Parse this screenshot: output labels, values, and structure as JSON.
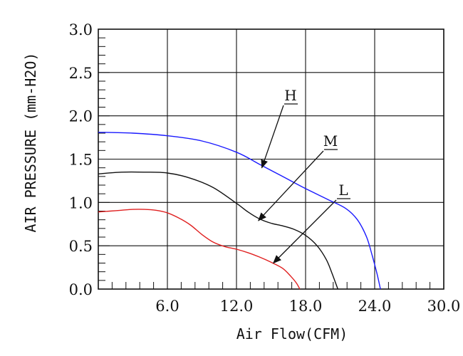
{
  "chart_data": {
    "type": "line",
    "xlabel": "Air Flow(CFM)",
    "ylabel": "AIR PRESSURE (mm-H2O)",
    "xlim": [
      0,
      30
    ],
    "ylim": [
      0,
      3.0
    ],
    "x_ticks": [
      {
        "value": 6,
        "label": "6.0"
      },
      {
        "value": 12,
        "label": "12.0"
      },
      {
        "value": 18,
        "label": "18.0"
      },
      {
        "value": 24,
        "label": "24.0"
      },
      {
        "value": 30,
        "label": "30.0"
      }
    ],
    "y_ticks": [
      {
        "value": 0,
        "label": "0.0"
      },
      {
        "value": 0.5,
        "label": "0.5"
      },
      {
        "value": 1.0,
        "label": "1.0"
      },
      {
        "value": 1.5,
        "label": "1.5"
      },
      {
        "value": 2.0,
        "label": "2.0"
      },
      {
        "value": 2.5,
        "label": "2.5"
      },
      {
        "value": 3.0,
        "label": "3.0"
      }
    ],
    "grid": true,
    "series": [
      {
        "name": "H",
        "color": "#1a1aff",
        "x": [
          0,
          3,
          6,
          9,
          12,
          14,
          16,
          18,
          20,
          21.5,
          22.5,
          23.3,
          23.8,
          24.2,
          24.5
        ],
        "y": [
          1.81,
          1.8,
          1.77,
          1.71,
          1.58,
          1.44,
          1.3,
          1.16,
          1.03,
          0.93,
          0.8,
          0.6,
          0.38,
          0.18,
          0.0
        ]
      },
      {
        "name": "M",
        "color": "#111111",
        "x": [
          0,
          2,
          4,
          6,
          8,
          10,
          12,
          13,
          14,
          15,
          16,
          17,
          18,
          19,
          19.8,
          20.3,
          20.8
        ],
        "y": [
          1.33,
          1.35,
          1.35,
          1.34,
          1.28,
          1.17,
          0.99,
          0.89,
          0.81,
          0.76,
          0.73,
          0.69,
          0.62,
          0.5,
          0.34,
          0.18,
          0.0
        ]
      },
      {
        "name": "L",
        "color": "#e02020",
        "x": [
          0,
          1,
          2,
          3,
          4,
          5,
          6,
          7,
          8,
          9,
          10,
          11,
          12,
          13,
          14,
          15,
          16,
          16.7,
          17.2,
          17.5
        ],
        "y": [
          0.89,
          0.9,
          0.91,
          0.92,
          0.92,
          0.91,
          0.88,
          0.82,
          0.74,
          0.63,
          0.54,
          0.49,
          0.46,
          0.42,
          0.37,
          0.31,
          0.24,
          0.15,
          0.07,
          0.0
        ]
      }
    ],
    "annotations": [
      {
        "text": "H",
        "series": "H",
        "arrow_tip": {
          "x": 14.2,
          "y": 1.4
        }
      },
      {
        "text": "M",
        "series": "M",
        "arrow_tip": {
          "x": 13.9,
          "y": 0.79
        }
      },
      {
        "text": "L",
        "series": "L",
        "arrow_tip": {
          "x": 15.2,
          "y": 0.3
        }
      }
    ]
  }
}
